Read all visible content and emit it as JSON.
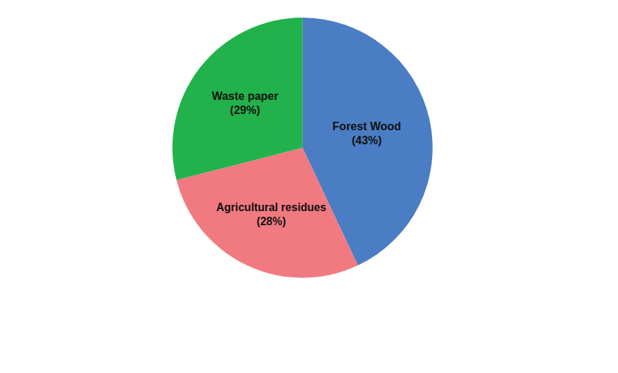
{
  "chart_data": {
    "type": "pie",
    "categories": [
      "Forest Wood",
      "Agricultural residues",
      "Waste paper"
    ],
    "values": [
      43,
      28,
      29
    ],
    "value_labels": [
      "(43%)",
      "(28%)",
      "(29%)"
    ],
    "colors": [
      "#4a7dc3",
      "#f17a80",
      "#22b24c"
    ],
    "data_labels": true
  }
}
